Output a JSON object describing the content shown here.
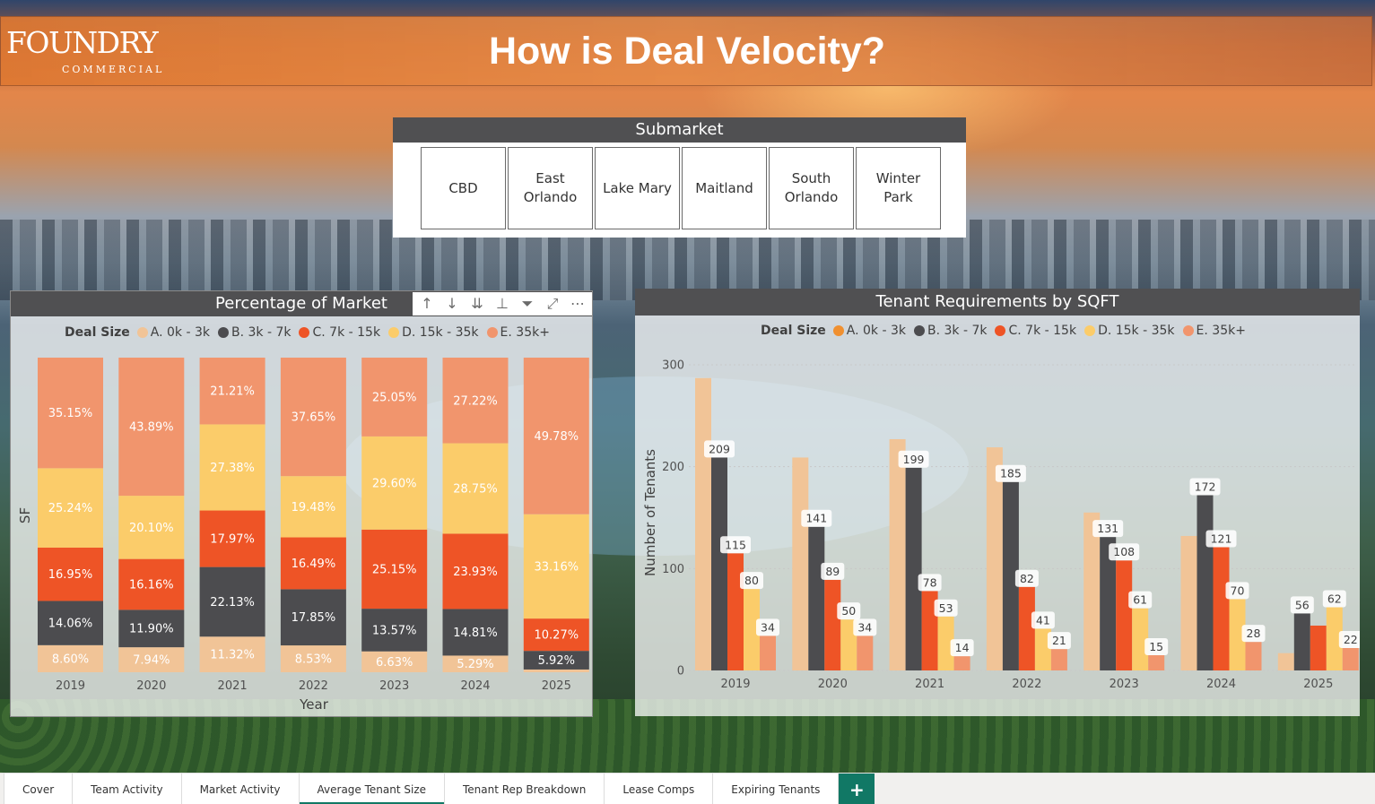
{
  "header": {
    "title": "How is Deal Velocity?",
    "logo_word": "FOUNDRY",
    "logo_sub": "COMMERCIAL"
  },
  "slicer": {
    "title": "Submarket",
    "options": [
      "CBD",
      "East\nOrlando",
      "Lake Mary",
      "Maitland",
      "South\nOrlando",
      "Winter\nPark"
    ]
  },
  "colors": {
    "A": "#f1c497",
    "B": "#4c4c4f",
    "C": "#ee5426",
    "D": "#fbcc6a",
    "E": "#f1956d",
    "A_legend": "#f09030",
    "accent": "#117865",
    "panel_header": "#505052"
  },
  "left_chart": {
    "title": "Percentage of Market",
    "toolbar": [
      "arrow-up-icon",
      "arrow-down-icon",
      "double-arrow-down-icon",
      "hierarchy-icon",
      "filter-icon",
      "focus-mode-icon",
      "more-options-icon"
    ]
  },
  "right_chart": {
    "title": "Tenant Requirements by SQFT"
  },
  "chart_data": [
    {
      "type": "bar",
      "stacked": "100%",
      "title": "Percentage of Market",
      "xlabel": "Year",
      "ylabel": "SF",
      "legend_title": "Deal Size",
      "categories": [
        "2019",
        "2020",
        "2021",
        "2022",
        "2023",
        "2024",
        "2025"
      ],
      "series": [
        {
          "name": "A. 0k - 3k",
          "values": [
            8.6,
            7.94,
            11.32,
            8.53,
            6.63,
            5.29,
            0.87
          ],
          "labels": [
            "8.60%",
            "7.94%",
            "11.32%",
            "8.53%",
            "6.63%",
            "5.29%",
            ""
          ]
        },
        {
          "name": "B. 3k - 7k",
          "values": [
            14.06,
            11.9,
            22.13,
            17.85,
            13.57,
            14.81,
            5.92
          ],
          "labels": [
            "14.06%",
            "11.90%",
            "22.13%",
            "17.85%",
            "13.57%",
            "14.81%",
            "5.92%"
          ]
        },
        {
          "name": "C. 7k - 15k",
          "values": [
            16.95,
            16.16,
            17.97,
            16.49,
            25.15,
            23.93,
            10.27
          ],
          "labels": [
            "16.95%",
            "16.16%",
            "17.97%",
            "16.49%",
            "25.15%",
            "23.93%",
            "10.27%"
          ]
        },
        {
          "name": "D. 15k - 35k",
          "values": [
            25.24,
            20.1,
            27.38,
            19.48,
            29.6,
            28.75,
            33.16
          ],
          "labels": [
            "25.24%",
            "20.10%",
            "27.38%",
            "19.48%",
            "29.60%",
            "28.75%",
            "33.16%"
          ]
        },
        {
          "name": "E. 35k+",
          "values": [
            35.15,
            43.89,
            21.21,
            37.65,
            25.05,
            27.22,
            49.78
          ],
          "labels": [
            "35.15%",
            "43.89%",
            "21.21%",
            "37.65%",
            "25.05%",
            "27.22%",
            "49.78%"
          ]
        }
      ]
    },
    {
      "type": "bar",
      "title": "Tenant Requirements by SQFT",
      "xlabel": "",
      "ylabel": "Number of Tenants",
      "legend_title": "Deal Size",
      "ylim": [
        0,
        300
      ],
      "yticks": [
        0,
        100,
        200,
        300
      ],
      "grid": true,
      "categories": [
        "2019",
        "2020",
        "2021",
        "2022",
        "2023",
        "2024",
        "2025"
      ],
      "series": [
        {
          "name": "A. 0k - 3k",
          "values": [
            287,
            209,
            227,
            219,
            155,
            132,
            17
          ],
          "labels": [
            "",
            "",
            "",
            "",
            "",
            "",
            ""
          ]
        },
        {
          "name": "B. 3k - 7k",
          "values": [
            209,
            141,
            199,
            185,
            131,
            172,
            56
          ],
          "labels": [
            "209",
            "141",
            "199",
            "185",
            "131",
            "172",
            "56"
          ]
        },
        {
          "name": "C. 7k - 15k",
          "values": [
            115,
            89,
            78,
            82,
            108,
            121,
            44
          ],
          "labels": [
            "115",
            "89",
            "78",
            "82",
            "108",
            "121",
            ""
          ]
        },
        {
          "name": "D. 15k - 35k",
          "values": [
            80,
            50,
            53,
            41,
            61,
            70,
            62
          ],
          "labels": [
            "80",
            "50",
            "53",
            "41",
            "61",
            "70",
            "62"
          ]
        },
        {
          "name": "E. 35k+",
          "values": [
            34,
            34,
            14,
            21,
            15,
            28,
            22
          ],
          "labels": [
            "34",
            "34",
            "14",
            "21",
            "15",
            "28",
            "22"
          ]
        }
      ]
    }
  ],
  "tabs": [
    {
      "label": "Cover",
      "active": false
    },
    {
      "label": "Team Activity",
      "active": false
    },
    {
      "label": "Market Activity",
      "active": false
    },
    {
      "label": "Average Tenant Size",
      "active": true
    },
    {
      "label": "Tenant Rep Breakdown",
      "active": false
    },
    {
      "label": "Lease Comps",
      "active": false
    },
    {
      "label": "Expiring Tenants",
      "active": false
    }
  ],
  "add_tab": "+"
}
